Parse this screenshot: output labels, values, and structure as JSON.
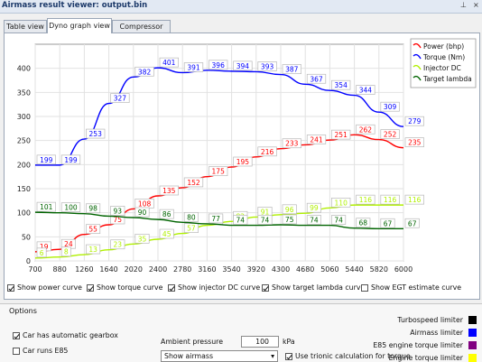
{
  "window": {
    "title": "Airmass result viewer: output.bin",
    "pin_glyph": "⊥",
    "close_glyph": "×"
  },
  "tabs": [
    {
      "label": "Table view",
      "active": false
    },
    {
      "label": "Dyno graph view",
      "active": true
    },
    {
      "label": "Compressor map",
      "active": false
    }
  ],
  "chart_data": {
    "type": "line",
    "title": "",
    "xlabel": "",
    "ylabel": "",
    "x": [
      700,
      880,
      1260,
      1640,
      2020,
      2400,
      2780,
      3160,
      3540,
      3920,
      4300,
      4680,
      5060,
      5440,
      5820,
      6000
    ],
    "xlim": [
      700,
      6000
    ],
    "ylim": [
      0,
      450
    ],
    "yticks": [
      0,
      50,
      100,
      150,
      200,
      250,
      300,
      350,
      400
    ],
    "grid": true,
    "legend_position": "top-right",
    "series": [
      {
        "name": "Power (bhp)",
        "color": "#ff0000",
        "x": [
          700,
          880,
          1260,
          1640,
          2020,
          2400,
          2780,
          3160,
          3540,
          3920,
          4300,
          4680,
          5060,
          5440,
          5820,
          6000
        ],
        "y": [
          19,
          24,
          55,
          75,
          108,
          135,
          152,
          175,
          195,
          216,
          233,
          241,
          251,
          262,
          252,
          235
        ]
      },
      {
        "name": "Torque (Nm)",
        "color": "#0000ff",
        "x": [
          700,
          880,
          1260,
          1640,
          2020,
          2400,
          2780,
          3160,
          3540,
          3920,
          4300,
          4680,
          5060,
          5440,
          5820,
          6000
        ],
        "y": [
          199,
          199,
          253,
          327,
          382,
          401,
          391,
          396,
          394,
          393,
          387,
          367,
          354,
          344,
          309,
          279
        ]
      },
      {
        "name": "Injector DC",
        "color": "#b0f000",
        "x": [
          700,
          880,
          1260,
          1640,
          2020,
          2400,
          2780,
          3160,
          3540,
          3920,
          4300,
          4680,
          5060,
          5440,
          5820,
          6000
        ],
        "y": [
          6,
          8,
          13,
          23,
          35,
          45,
          57,
          74,
          82,
          91,
          96,
          99,
          110,
          116,
          116,
          116
        ]
      },
      {
        "name": "Target lambda",
        "color": "#006400",
        "x": [
          700,
          880,
          1260,
          1640,
          2020,
          2400,
          2780,
          3160,
          3540,
          3920,
          4300,
          4680,
          5060,
          5440,
          5820,
          6000
        ],
        "y": [
          101,
          100,
          98,
          93,
          90,
          86,
          80,
          77,
          74,
          74,
          75,
          74,
          74,
          68,
          67,
          67
        ]
      }
    ],
    "data_labels": {
      "Power (bhp)": [
        "19",
        "24",
        "55",
        "75",
        "108",
        "135",
        "152",
        "175",
        "195",
        "216",
        "233",
        "241",
        "251",
        "262",
        "252",
        "235"
      ],
      "Torque (Nm)": [
        "199",
        "199",
        "253",
        "327",
        "382",
        "401",
        "391",
        "396",
        "394",
        "393",
        "387",
        "367",
        "354",
        "344",
        "309",
        "279"
      ],
      "Injector DC": [
        "6",
        "8",
        "13",
        "23",
        "35",
        "45",
        "57",
        "74",
        "82",
        "91",
        "96",
        "99",
        "110",
        "116",
        "116",
        "116"
      ],
      "Target lambda": [
        "101",
        "100",
        "98",
        "93",
        "90",
        "86",
        "80",
        "77",
        "74",
        "74",
        "75",
        "74",
        "74",
        "68",
        "67",
        "67"
      ]
    }
  },
  "curve_toggles": [
    {
      "label": "Show power curve",
      "checked": true
    },
    {
      "label": "Show torque curve",
      "checked": true
    },
    {
      "label": "Show injector DC curve",
      "checked": true
    },
    {
      "label": "Show target lambda curve",
      "checked": true
    },
    {
      "label": "Show EGT estimate curve",
      "checked": false
    }
  ],
  "options": {
    "header": "Options",
    "auto_gearbox": {
      "label": "Car has automatic gearbox",
      "checked": true
    },
    "e85": {
      "label": "Car runs E85",
      "checked": false
    },
    "ambient_pressure": {
      "label": "Ambient pressure",
      "value": "100",
      "unit": "kPa"
    },
    "view_select": {
      "value": "Show airmass"
    },
    "trionic_calc": {
      "label": "Use trionic calculation for torque",
      "checked": true
    }
  },
  "limiters": [
    {
      "label": "Turbospeed limiter",
      "color": "#000000"
    },
    {
      "label": "Airmass limiter",
      "color": "#0000ff"
    },
    {
      "label": "E85 engine torque limiter",
      "color": "#800080"
    },
    {
      "label": "Engine torque limiter",
      "color": "#ffff00"
    }
  ]
}
